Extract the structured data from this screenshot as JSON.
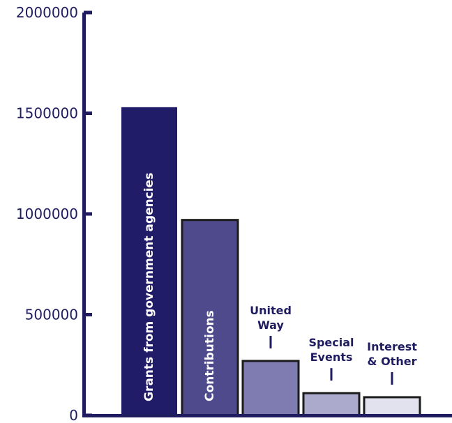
{
  "chart_data": {
    "type": "bar",
    "title": "",
    "xlabel": "",
    "ylabel": "",
    "ylim": [
      0,
      2000000
    ],
    "yticks": [
      0,
      500000,
      1000000,
      1500000,
      2000000
    ],
    "ytick_labels": [
      "0",
      "500000",
      "1000000",
      "1500000",
      "2000000"
    ],
    "grid": false,
    "legend": "none",
    "categories": [
      "Grants from government agencies",
      "Contributions",
      "United Way",
      "Special Events",
      "Interest & Other"
    ],
    "label_lines": [
      [
        "Grants from government agencies"
      ],
      [
        "Contributions"
      ],
      [
        "United",
        "Way"
      ],
      [
        "Special",
        "Events"
      ],
      [
        "Interest",
        "& Other"
      ]
    ],
    "label_placement": [
      "inside",
      "inside",
      "above",
      "above",
      "above"
    ],
    "values": [
      1530000,
      970000,
      270000,
      110000,
      90000
    ],
    "bar_colors": [
      "#211c68",
      "#4f4a8c",
      "#7f7cb1",
      "#abaacd",
      "#e2e2ef"
    ],
    "axis_color": "#1f1c60",
    "bar_border_color": "#1b1b1b",
    "inner_label_color": "#ffffff",
    "callout_label_color": "#1f1c60"
  }
}
